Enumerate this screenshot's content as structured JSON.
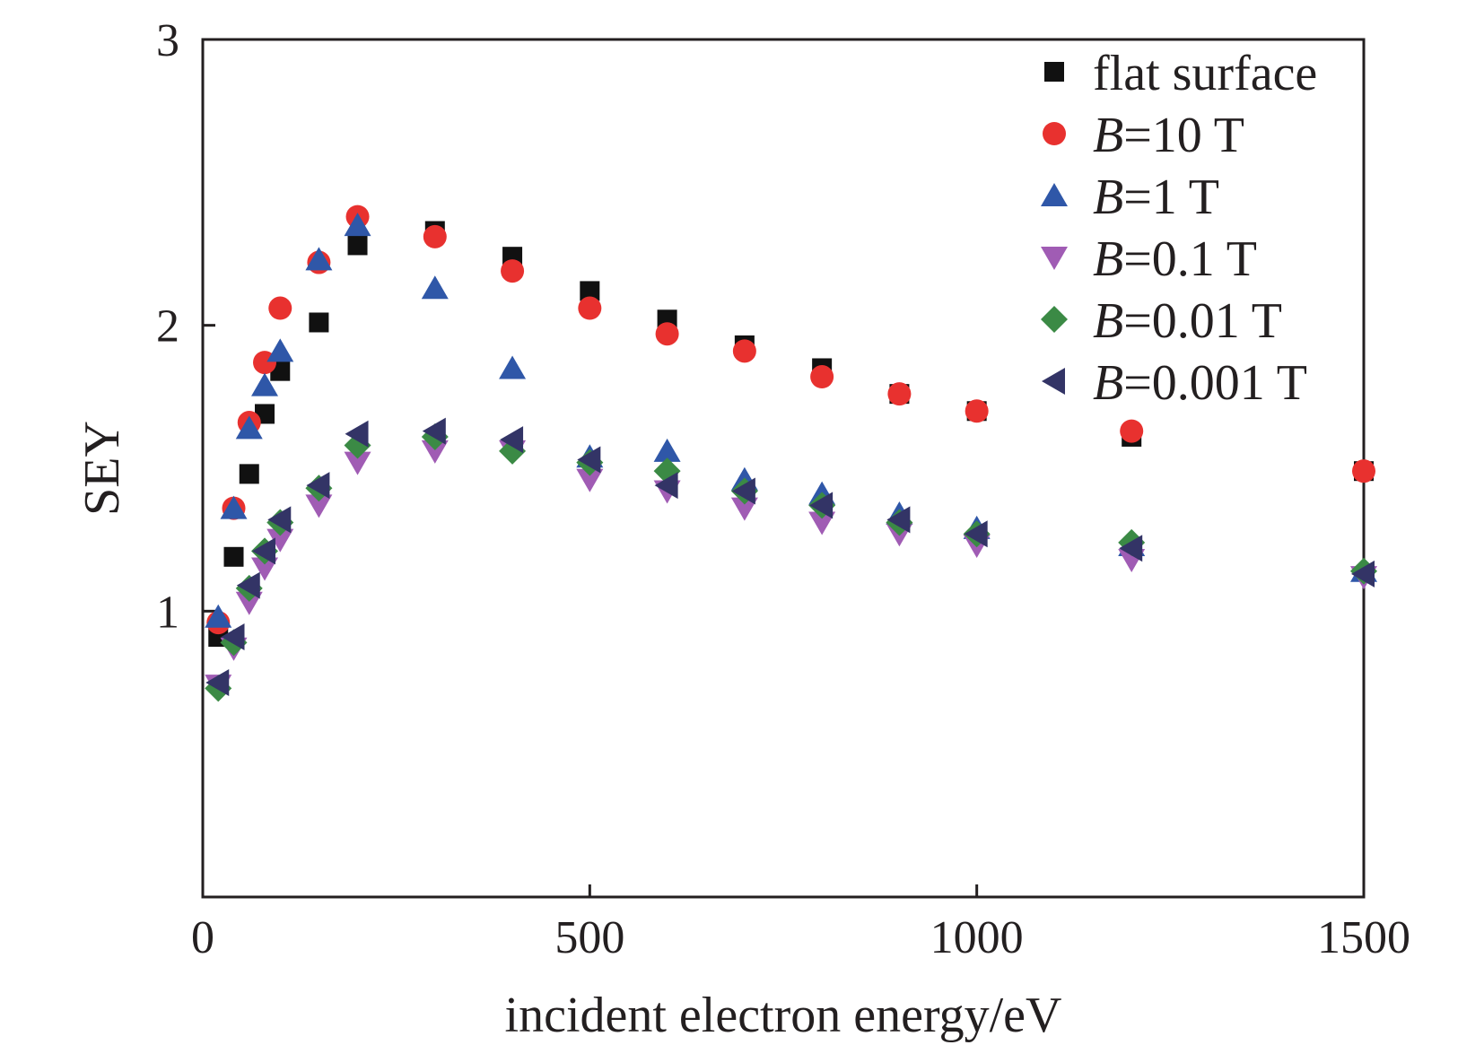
{
  "chart_data": {
    "type": "scatter",
    "xlabel": "incident electron energy/eV",
    "ylabel": "SEY",
    "xlim": [
      0,
      1500
    ],
    "ylim": [
      0,
      3
    ],
    "x_ticks": [
      0,
      500,
      1000,
      1500
    ],
    "y_ticks": [
      1,
      2,
      3
    ],
    "grid": false,
    "legend_position": "top-right",
    "series": [
      {
        "name": "flat surface",
        "legend_prefix": "",
        "legend_suffix": "flat surface",
        "marker": "square",
        "color": "#111111",
        "points": [
          [
            20,
            0.91
          ],
          [
            40,
            1.19
          ],
          [
            60,
            1.48
          ],
          [
            80,
            1.69
          ],
          [
            100,
            1.84
          ],
          [
            150,
            2.01
          ],
          [
            200,
            2.28
          ],
          [
            300,
            2.33
          ],
          [
            400,
            2.24
          ],
          [
            500,
            2.12
          ],
          [
            600,
            2.02
          ],
          [
            700,
            1.93
          ],
          [
            800,
            1.85
          ],
          [
            900,
            1.76
          ],
          [
            1000,
            1.7
          ],
          [
            1200,
            1.61
          ],
          [
            1500,
            1.49
          ]
        ]
      },
      {
        "name": "B=10 T",
        "legend_prefix": "B",
        "legend_suffix": "=10 T",
        "marker": "circle",
        "color": "#e8312f",
        "points": [
          [
            20,
            0.96
          ],
          [
            40,
            1.36
          ],
          [
            60,
            1.66
          ],
          [
            80,
            1.87
          ],
          [
            100,
            2.06
          ],
          [
            150,
            2.22
          ],
          [
            200,
            2.38
          ],
          [
            300,
            2.31
          ],
          [
            400,
            2.19
          ],
          [
            500,
            2.06
          ],
          [
            600,
            1.97
          ],
          [
            700,
            1.91
          ],
          [
            800,
            1.82
          ],
          [
            900,
            1.76
          ],
          [
            1000,
            1.7
          ],
          [
            1200,
            1.63
          ],
          [
            1500,
            1.49
          ]
        ]
      },
      {
        "name": "B=1 T",
        "legend_prefix": "B",
        "legend_suffix": "=1 T",
        "marker": "triangle-up",
        "color": "#2f57a8",
        "points": [
          [
            20,
            0.98
          ],
          [
            40,
            1.36
          ],
          [
            60,
            1.64
          ],
          [
            80,
            1.79
          ],
          [
            100,
            1.91
          ],
          [
            150,
            2.23
          ],
          [
            200,
            2.35
          ],
          [
            300,
            2.13
          ],
          [
            400,
            1.85
          ],
          [
            500,
            1.54
          ],
          [
            600,
            1.56
          ],
          [
            700,
            1.46
          ],
          [
            800,
            1.41
          ],
          [
            900,
            1.34
          ],
          [
            1000,
            1.29
          ],
          [
            1200,
            1.23
          ],
          [
            1500,
            1.14
          ]
        ]
      },
      {
        "name": "B=0.1 T",
        "legend_prefix": "B",
        "legend_suffix": "=0.1 T",
        "marker": "triangle-down",
        "color": "#a05cb4",
        "points": [
          [
            20,
            0.74
          ],
          [
            40,
            0.87
          ],
          [
            60,
            1.03
          ],
          [
            80,
            1.15
          ],
          [
            100,
            1.25
          ],
          [
            150,
            1.37
          ],
          [
            200,
            1.52
          ],
          [
            300,
            1.56
          ],
          [
            400,
            1.56
          ],
          [
            500,
            1.46
          ],
          [
            600,
            1.42
          ],
          [
            700,
            1.36
          ],
          [
            800,
            1.31
          ],
          [
            900,
            1.27
          ],
          [
            1000,
            1.23
          ],
          [
            1200,
            1.18
          ],
          [
            1500,
            1.12
          ]
        ]
      },
      {
        "name": "B=0.01 T",
        "legend_prefix": "B",
        "legend_suffix": "=0.01 T",
        "marker": "diamond",
        "color": "#3b8a45",
        "points": [
          [
            20,
            0.73
          ],
          [
            40,
            0.89
          ],
          [
            60,
            1.08
          ],
          [
            80,
            1.21
          ],
          [
            100,
            1.31
          ],
          [
            150,
            1.43
          ],
          [
            200,
            1.58
          ],
          [
            300,
            1.61
          ],
          [
            400,
            1.56
          ],
          [
            500,
            1.52
          ],
          [
            600,
            1.49
          ],
          [
            700,
            1.42
          ],
          [
            800,
            1.37
          ],
          [
            900,
            1.31
          ],
          [
            1000,
            1.27
          ],
          [
            1200,
            1.24
          ],
          [
            1500,
            1.14
          ]
        ]
      },
      {
        "name": "B=0.001 T",
        "legend_prefix": "B",
        "legend_suffix": "=0.001 T",
        "marker": "triangle-left",
        "color": "#333466",
        "points": [
          [
            20,
            0.75
          ],
          [
            40,
            0.91
          ],
          [
            60,
            1.09
          ],
          [
            80,
            1.21
          ],
          [
            100,
            1.32
          ],
          [
            150,
            1.44
          ],
          [
            200,
            1.62
          ],
          [
            300,
            1.63
          ],
          [
            400,
            1.6
          ],
          [
            500,
            1.53
          ],
          [
            600,
            1.44
          ],
          [
            700,
            1.42
          ],
          [
            800,
            1.37
          ],
          [
            900,
            1.32
          ],
          [
            1000,
            1.27
          ],
          [
            1200,
            1.22
          ],
          [
            1500,
            1.13
          ]
        ]
      }
    ]
  }
}
